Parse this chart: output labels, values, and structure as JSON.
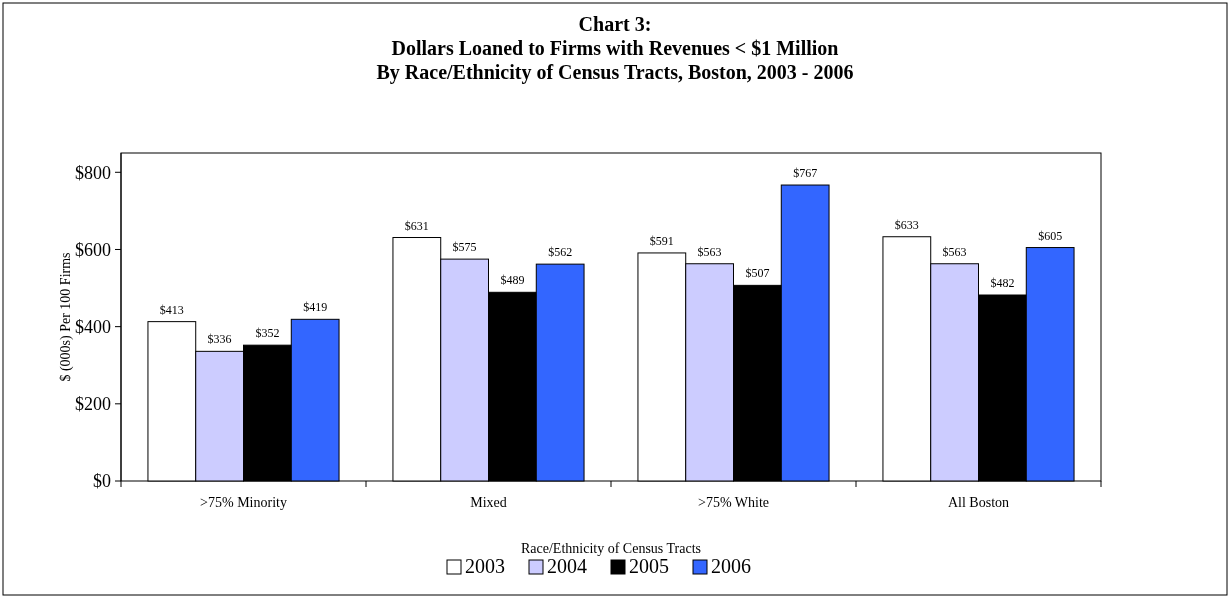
{
  "chart_data": {
    "type": "bar",
    "title": "Chart 3:\nDollars Loaned to Firms with Revenues < $1 Million\nBy Race/Ethnicity of Census Tracts, Boston, 2003 - 2006",
    "xlabel": "Race/Ethnicity of Census Tracts",
    "ylabel": "$ (000s) Per 100 Firms",
    "categories": [
      ">75% Minority",
      "Mixed",
      ">75% White",
      "All Boston"
    ],
    "series": [
      {
        "name": "2003",
        "color": "#ffffff",
        "values": [
          413,
          631,
          591,
          633
        ],
        "value_labels": [
          "$413",
          "$631",
          "$591",
          "$633"
        ]
      },
      {
        "name": "2004",
        "color": "#ccccff",
        "values": [
          336,
          575,
          563,
          563
        ],
        "value_labels": [
          "$336",
          "$575",
          "$563",
          "$563"
        ]
      },
      {
        "name": "2005",
        "color": "#000000",
        "values": [
          352,
          489,
          507,
          482
        ],
        "value_labels": [
          "$352",
          "$489",
          "$507",
          "$482"
        ]
      },
      {
        "name": "2006",
        "color": "#3366ff",
        "values": [
          419,
          562,
          767,
          605
        ],
        "value_labels": [
          "$419",
          "$562",
          "$767",
          "$605"
        ]
      }
    ],
    "ylim": [
      0,
      850
    ],
    "yticks": [
      {
        "value": 0,
        "label": "$0"
      },
      {
        "value": 200,
        "label": "$200"
      },
      {
        "value": 400,
        "label": "$400"
      },
      {
        "value": 600,
        "label": "$600"
      },
      {
        "value": 800,
        "label": "$800"
      }
    ],
    "grid": false,
    "legend": "bottom"
  }
}
